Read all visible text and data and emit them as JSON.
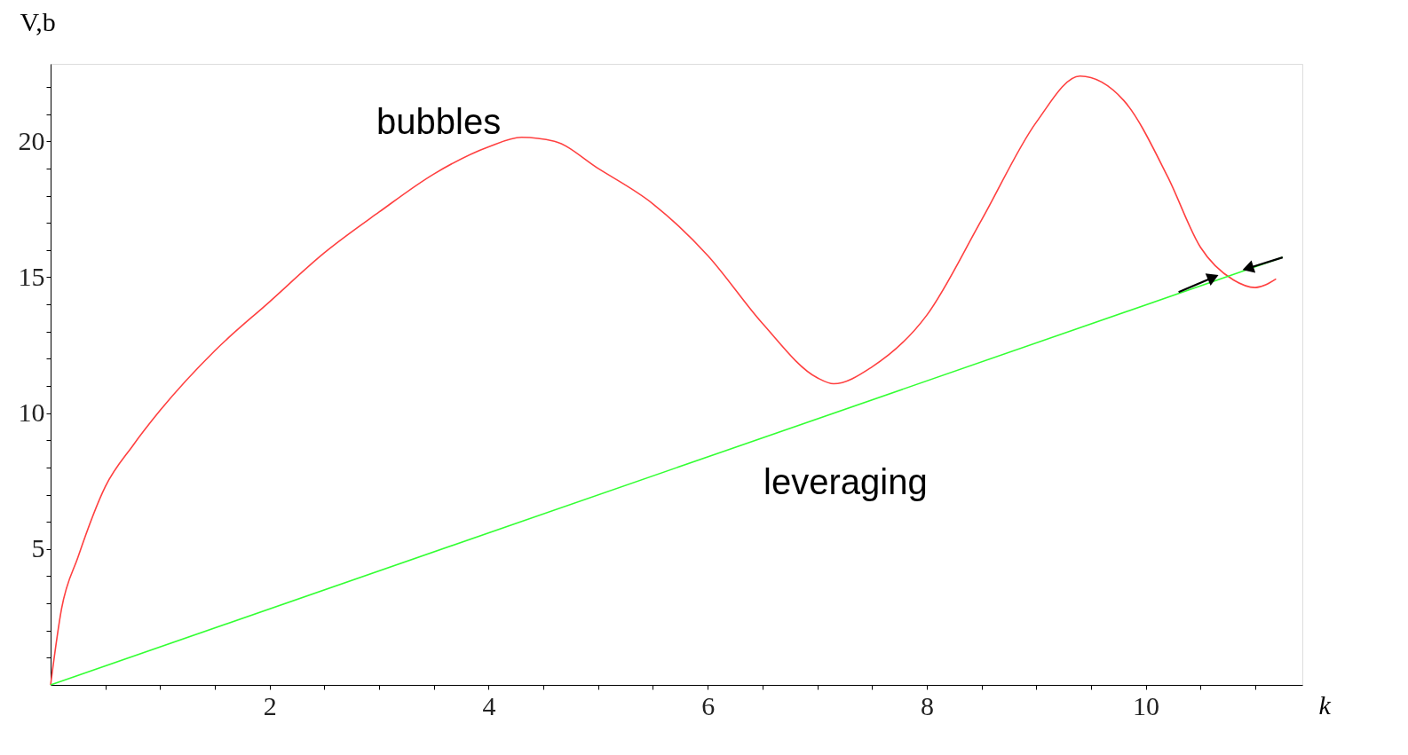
{
  "chart_data": {
    "type": "line",
    "xlabel": "k",
    "ylabel": "V,b",
    "xlim": [
      0,
      11.43
    ],
    "ylim": [
      0,
      22.85
    ],
    "xticks": [
      {
        "value": 0.5,
        "label": null
      },
      {
        "value": 1,
        "label": null
      },
      {
        "value": 1.5,
        "label": null
      },
      2,
      {
        "value": 2.5,
        "label": null
      },
      {
        "value": 3,
        "label": null
      },
      {
        "value": 3.5,
        "label": null
      },
      4,
      {
        "value": 4.5,
        "label": null
      },
      {
        "value": 5,
        "label": null
      },
      {
        "value": 5.5,
        "label": null
      },
      6,
      {
        "value": 6.5,
        "label": null
      },
      {
        "value": 7,
        "label": null
      },
      {
        "value": 7.5,
        "label": null
      },
      8,
      {
        "value": 8.5,
        "label": null
      },
      {
        "value": 9,
        "label": null
      },
      {
        "value": 9.5,
        "label": null
      },
      10,
      {
        "value": 10.5,
        "label": null
      },
      {
        "value": 11,
        "label": null
      }
    ],
    "yticks": [
      {
        "value": 1,
        "label": null
      },
      {
        "value": 2,
        "label": null
      },
      {
        "value": 3,
        "label": null
      },
      {
        "value": 4,
        "label": null
      },
      5,
      {
        "value": 6,
        "label": null
      },
      {
        "value": 7,
        "label": null
      },
      {
        "value": 8,
        "label": null
      },
      {
        "value": 9,
        "label": null
      },
      10,
      {
        "value": 11,
        "label": null
      },
      {
        "value": 12,
        "label": null
      },
      {
        "value": 13,
        "label": null
      },
      {
        "value": 14,
        "label": null
      },
      15,
      {
        "value": 16,
        "label": null
      },
      {
        "value": 17,
        "label": null
      },
      {
        "value": 18,
        "label": null
      },
      {
        "value": 19,
        "label": null
      },
      20,
      {
        "value": 21,
        "label": null
      },
      {
        "value": 22,
        "label": null
      }
    ],
    "grid": false,
    "marker": "none",
    "line_style": "solid",
    "series": [
      {
        "color": "#ff4040",
        "x": [
          0,
          0.1,
          0.25,
          0.5,
          0.75,
          1,
          1.5,
          2,
          2.5,
          3,
          3.5,
          4,
          4.3,
          4.6,
          5,
          5.5,
          6,
          6.5,
          7,
          7.15,
          7.5,
          8,
          8.5,
          9,
          9.4,
          9.8,
          10.2,
          10.5,
          10.8,
          11.0,
          11.19
        ],
        "values": [
          0,
          2.8,
          4.7,
          7.3,
          8.8,
          10.1,
          12.3,
          14.1,
          15.9,
          17.4,
          18.8,
          19.8,
          20.15,
          20.0,
          19.0,
          17.7,
          15.8,
          13.3,
          11.3,
          11.08,
          11.7,
          13.6,
          17.1,
          20.7,
          22.4,
          21.5,
          18.7,
          16.1,
          14.9,
          14.62,
          14.94
        ]
      },
      {
        "color": "#33ff33",
        "x": [
          0,
          11.25
        ],
        "values": [
          0,
          15.73
        ]
      },
      {
        "color": "#000000",
        "marker": "triangle",
        "x": [
          10.3,
          10.6
        ],
        "values": [
          14.45,
          14.97
        ]
      },
      {
        "color": "#000000",
        "marker": "triangle",
        "x": [
          11.25,
          10.95
        ],
        "values": [
          15.73,
          15.35
        ]
      }
    ],
    "annotations": [
      "bubbles",
      "leveraging"
    ]
  }
}
